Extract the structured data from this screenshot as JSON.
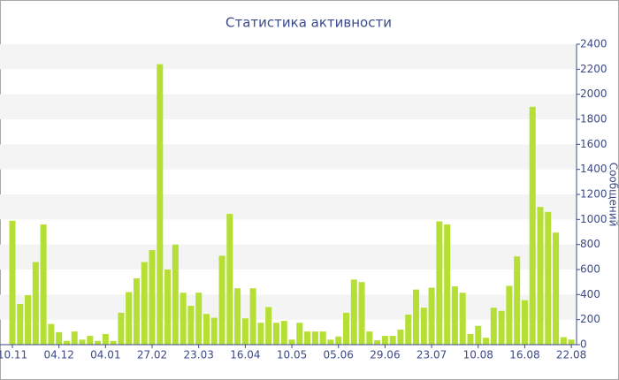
{
  "chart_data": {
    "type": "bar",
    "title": "Статистика активности",
    "y_label": "Сообщений",
    "categories": [
      "10.11",
      null,
      null,
      null,
      null,
      null,
      "04.12",
      null,
      null,
      null,
      null,
      null,
      "04.01",
      null,
      null,
      null,
      null,
      null,
      "27.02",
      null,
      null,
      null,
      null,
      null,
      "23.03",
      null,
      null,
      null,
      null,
      null,
      "16.04",
      null,
      null,
      null,
      null,
      null,
      "10.05",
      null,
      null,
      null,
      null,
      null,
      "05.06",
      null,
      null,
      null,
      null,
      null,
      "29.06",
      null,
      null,
      null,
      null,
      null,
      "23.07",
      null,
      null,
      null,
      null,
      null,
      "10.08",
      null,
      null,
      null,
      null,
      null,
      "16.08",
      null,
      null,
      null,
      null,
      null,
      "22.08"
    ],
    "values": [
      990,
      325,
      395,
      660,
      960,
      165,
      100,
      30,
      105,
      40,
      70,
      30,
      85,
      30,
      255,
      420,
      530,
      660,
      755,
      2240,
      600,
      800,
      415,
      310,
      415,
      245,
      215,
      710,
      1045,
      450,
      210,
      450,
      175,
      300,
      175,
      190,
      40,
      175,
      105,
      105,
      105,
      40,
      65,
      255,
      520,
      500,
      105,
      35,
      70,
      70,
      120,
      240,
      440,
      295,
      455,
      985,
      960,
      465,
      415,
      85,
      150,
      55,
      295,
      270,
      470,
      705,
      355,
      1900,
      1100,
      1060,
      895,
      60,
      40
    ],
    "color": "#b6df35",
    "ylim": [
      0,
      2400
    ],
    "yticks": [
      0,
      200,
      400,
      600,
      800,
      1000,
      1200,
      1400,
      1600,
      1800,
      2000,
      2200,
      2400
    ],
    "y_axis_side": "right",
    "grid": true
  }
}
